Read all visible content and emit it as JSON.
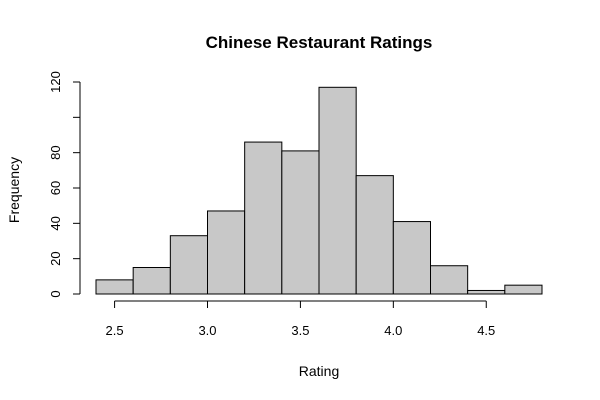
{
  "chart_data": {
    "type": "bar",
    "title": "Chinese Restaurant Ratings",
    "xlabel": "Rating",
    "ylabel": "Frequency",
    "bin_edges": [
      2.4,
      2.6,
      2.8,
      3.0,
      3.2,
      3.4,
      3.6,
      3.8,
      4.0,
      4.2,
      4.4,
      4.6,
      4.8
    ],
    "values": [
      8,
      15,
      33,
      47,
      86,
      81,
      117,
      67,
      41,
      16,
      2,
      5
    ],
    "xlim": [
      2.4,
      4.8
    ],
    "ylim": [
      0,
      120
    ],
    "xticks": [
      2.5,
      3.0,
      3.5,
      4.0,
      4.5
    ],
    "xtick_labels": [
      "2.5",
      "3.0",
      "3.5",
      "4.0",
      "4.5"
    ],
    "yticks": [
      0,
      20,
      40,
      60,
      80,
      100,
      120
    ],
    "ytick_labels": [
      "0",
      "20",
      "40",
      "60",
      "80",
      "",
      "120"
    ],
    "bar_color": "#c8c8c8",
    "grid": false,
    "legend": "none"
  }
}
